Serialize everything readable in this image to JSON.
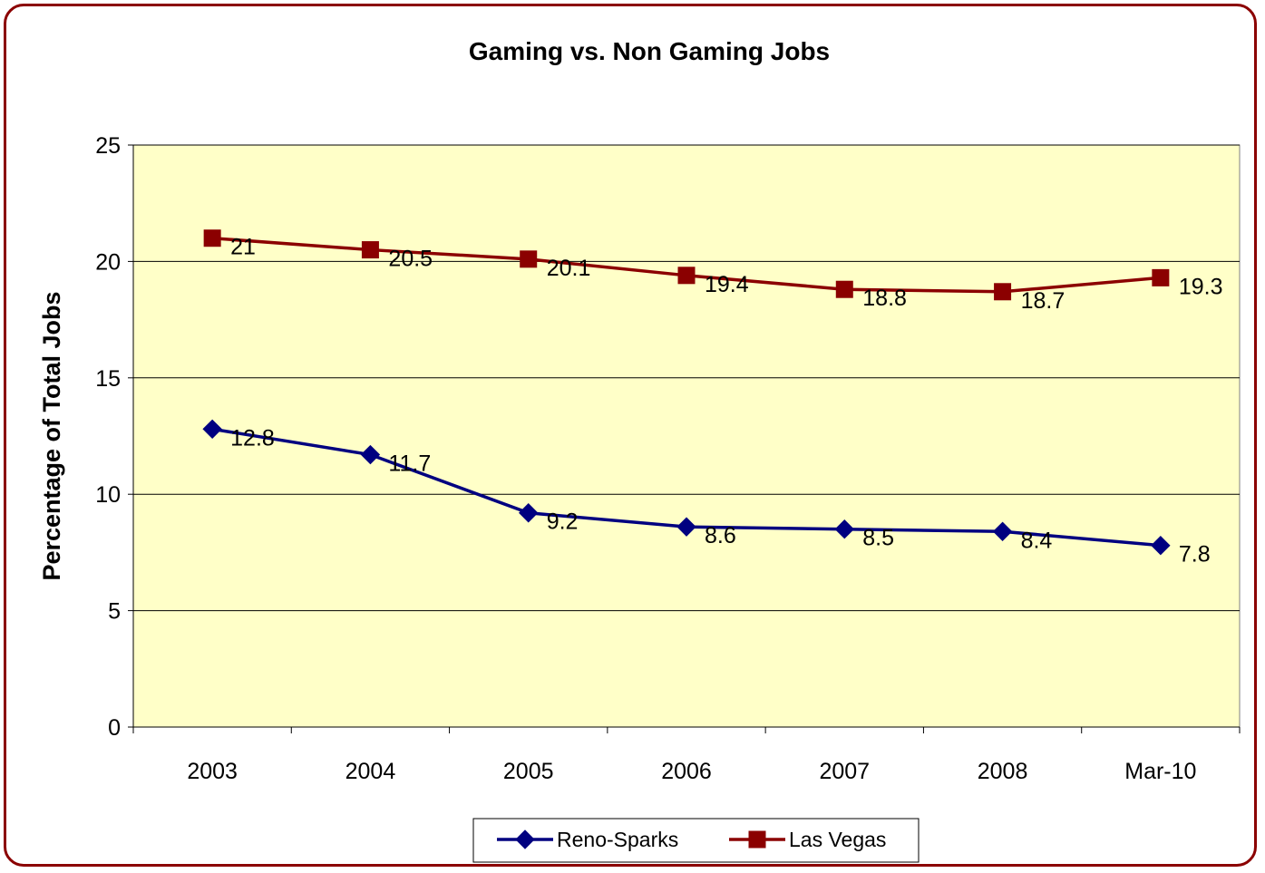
{
  "chart_data": {
    "type": "line",
    "title": "Gaming vs. Non Gaming Jobs",
    "xlabel": "",
    "ylabel": "Percentage of Total Jobs",
    "categories": [
      "2003",
      "2004",
      "2005",
      "2006",
      "2007",
      "2008",
      "Mar-10"
    ],
    "ylim": [
      0,
      25
    ],
    "yticks": [
      0,
      5,
      10,
      15,
      20,
      25
    ],
    "grid": true,
    "legend_position": "bottom",
    "plot_background": "#ffffc8",
    "series": [
      {
        "name": "Reno-Sparks",
        "marker": "diamond",
        "color": "#000080",
        "values": [
          12.8,
          11.7,
          9.2,
          8.6,
          8.5,
          8.4,
          7.8
        ]
      },
      {
        "name": "Las Vegas",
        "marker": "square",
        "color": "#8b0000",
        "values": [
          21,
          20.5,
          20.1,
          19.4,
          18.8,
          18.7,
          19.3
        ]
      }
    ]
  }
}
